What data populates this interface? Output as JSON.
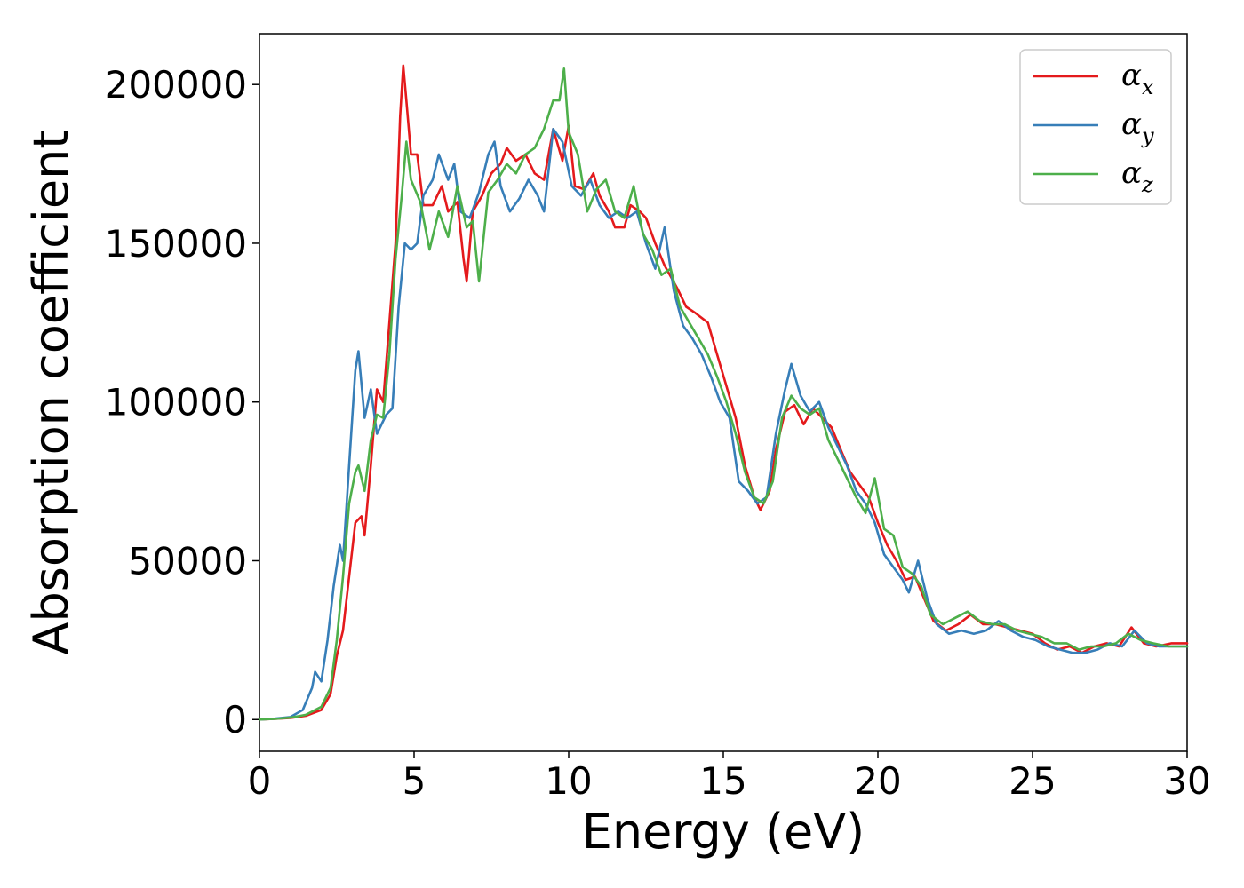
{
  "chart_data": {
    "type": "line",
    "title": "",
    "xlabel": "Energy (eV)",
    "ylabel": "Absorption coefficient",
    "xlim": [
      0,
      30
    ],
    "ylim": [
      -10000,
      216000
    ],
    "xticks": [
      0,
      5,
      10,
      15,
      20,
      25,
      30
    ],
    "yticks": [
      0,
      50000,
      100000,
      150000,
      200000
    ],
    "grid": false,
    "legend_position": "top-right",
    "series": [
      {
        "name": "α_x",
        "label_base": "α",
        "label_sub": "x",
        "color": "#e41a1c",
        "points": [
          [
            0,
            0
          ],
          [
            0.5,
            200
          ],
          [
            1.0,
            500
          ],
          [
            1.5,
            1200
          ],
          [
            2.0,
            3000
          ],
          [
            2.3,
            8000
          ],
          [
            2.5,
            20000
          ],
          [
            2.7,
            28000
          ],
          [
            2.9,
            45000
          ],
          [
            3.1,
            62000
          ],
          [
            3.3,
            64000
          ],
          [
            3.4,
            58000
          ],
          [
            3.6,
            80000
          ],
          [
            3.8,
            104000
          ],
          [
            4.0,
            100000
          ],
          [
            4.2,
            125000
          ],
          [
            4.4,
            150000
          ],
          [
            4.55,
            190000
          ],
          [
            4.65,
            206000
          ],
          [
            4.75,
            195000
          ],
          [
            4.9,
            178000
          ],
          [
            5.1,
            178000
          ],
          [
            5.3,
            162000
          ],
          [
            5.6,
            162000
          ],
          [
            5.9,
            168000
          ],
          [
            6.1,
            160000
          ],
          [
            6.4,
            163000
          ],
          [
            6.6,
            145000
          ],
          [
            6.7,
            138000
          ],
          [
            6.9,
            160000
          ],
          [
            7.2,
            165000
          ],
          [
            7.5,
            172000
          ],
          [
            7.8,
            175000
          ],
          [
            8.0,
            180000
          ],
          [
            8.3,
            176000
          ],
          [
            8.6,
            178000
          ],
          [
            8.9,
            172000
          ],
          [
            9.2,
            170000
          ],
          [
            9.5,
            186000
          ],
          [
            9.8,
            176000
          ],
          [
            10.0,
            187000
          ],
          [
            10.2,
            168000
          ],
          [
            10.5,
            167000
          ],
          [
            10.8,
            172000
          ],
          [
            11.0,
            165000
          ],
          [
            11.3,
            160000
          ],
          [
            11.5,
            155000
          ],
          [
            11.8,
            155000
          ],
          [
            12.0,
            162000
          ],
          [
            12.3,
            160000
          ],
          [
            12.5,
            158000
          ],
          [
            12.8,
            150000
          ],
          [
            13.1,
            143000
          ],
          [
            13.5,
            136000
          ],
          [
            13.8,
            130000
          ],
          [
            14.1,
            128000
          ],
          [
            14.5,
            125000
          ],
          [
            14.8,
            115000
          ],
          [
            15.1,
            105000
          ],
          [
            15.4,
            95000
          ],
          [
            15.7,
            80000
          ],
          [
            16.0,
            70000
          ],
          [
            16.2,
            66000
          ],
          [
            16.5,
            72000
          ],
          [
            16.7,
            85000
          ],
          [
            17.0,
            97000
          ],
          [
            17.3,
            99000
          ],
          [
            17.6,
            93000
          ],
          [
            17.9,
            98000
          ],
          [
            18.2,
            95000
          ],
          [
            18.5,
            92000
          ],
          [
            18.8,
            85000
          ],
          [
            19.1,
            78000
          ],
          [
            19.4,
            74000
          ],
          [
            19.7,
            70000
          ],
          [
            20.0,
            62000
          ],
          [
            20.3,
            55000
          ],
          [
            20.6,
            50000
          ],
          [
            20.9,
            44000
          ],
          [
            21.2,
            45000
          ],
          [
            21.5,
            38000
          ],
          [
            21.8,
            31000
          ],
          [
            22.2,
            28000
          ],
          [
            22.6,
            30000
          ],
          [
            23.0,
            33000
          ],
          [
            23.4,
            30000
          ],
          [
            23.8,
            30000
          ],
          [
            24.2,
            29000
          ],
          [
            24.6,
            28000
          ],
          [
            25.0,
            27000
          ],
          [
            25.4,
            24000
          ],
          [
            25.8,
            22000
          ],
          [
            26.2,
            23000
          ],
          [
            26.6,
            21000
          ],
          [
            27.0,
            23000
          ],
          [
            27.4,
            24000
          ],
          [
            27.8,
            23000
          ],
          [
            28.2,
            29000
          ],
          [
            28.6,
            24000
          ],
          [
            29.0,
            23000
          ],
          [
            29.5,
            24000
          ],
          [
            30.0,
            24000
          ]
        ]
      },
      {
        "name": "α_y",
        "label_base": "α",
        "label_sub": "y",
        "color": "#377eb8",
        "points": [
          [
            0,
            0
          ],
          [
            0.5,
            300
          ],
          [
            1.0,
            800
          ],
          [
            1.4,
            3000
          ],
          [
            1.7,
            10000
          ],
          [
            1.8,
            15000
          ],
          [
            2.0,
            12000
          ],
          [
            2.2,
            25000
          ],
          [
            2.4,
            42000
          ],
          [
            2.6,
            55000
          ],
          [
            2.7,
            50000
          ],
          [
            2.9,
            80000
          ],
          [
            3.1,
            110000
          ],
          [
            3.2,
            116000
          ],
          [
            3.4,
            95000
          ],
          [
            3.6,
            104000
          ],
          [
            3.8,
            90000
          ],
          [
            4.1,
            96000
          ],
          [
            4.3,
            98000
          ],
          [
            4.5,
            130000
          ],
          [
            4.7,
            150000
          ],
          [
            4.9,
            148000
          ],
          [
            5.1,
            150000
          ],
          [
            5.3,
            165000
          ],
          [
            5.6,
            170000
          ],
          [
            5.8,
            178000
          ],
          [
            6.1,
            170000
          ],
          [
            6.3,
            175000
          ],
          [
            6.5,
            160000
          ],
          [
            6.8,
            158000
          ],
          [
            7.1,
            166000
          ],
          [
            7.4,
            178000
          ],
          [
            7.6,
            182000
          ],
          [
            7.8,
            168000
          ],
          [
            8.1,
            160000
          ],
          [
            8.4,
            164000
          ],
          [
            8.7,
            170000
          ],
          [
            9.0,
            165000
          ],
          [
            9.2,
            160000
          ],
          [
            9.5,
            186000
          ],
          [
            9.8,
            182000
          ],
          [
            10.1,
            168000
          ],
          [
            10.4,
            165000
          ],
          [
            10.7,
            170000
          ],
          [
            11.0,
            162000
          ],
          [
            11.3,
            158000
          ],
          [
            11.6,
            160000
          ],
          [
            11.9,
            158000
          ],
          [
            12.2,
            160000
          ],
          [
            12.5,
            150000
          ],
          [
            12.8,
            142000
          ],
          [
            13.1,
            155000
          ],
          [
            13.4,
            135000
          ],
          [
            13.7,
            124000
          ],
          [
            14.0,
            120000
          ],
          [
            14.3,
            115000
          ],
          [
            14.6,
            108000
          ],
          [
            14.9,
            100000
          ],
          [
            15.2,
            95000
          ],
          [
            15.5,
            75000
          ],
          [
            15.8,
            72000
          ],
          [
            16.1,
            68000
          ],
          [
            16.4,
            70000
          ],
          [
            16.7,
            90000
          ],
          [
            17.0,
            104000
          ],
          [
            17.2,
            112000
          ],
          [
            17.5,
            102000
          ],
          [
            17.8,
            97000
          ],
          [
            18.1,
            100000
          ],
          [
            18.4,
            92000
          ],
          [
            18.7,
            86000
          ],
          [
            19.0,
            80000
          ],
          [
            19.3,
            72000
          ],
          [
            19.6,
            68000
          ],
          [
            19.9,
            62000
          ],
          [
            20.2,
            52000
          ],
          [
            20.5,
            48000
          ],
          [
            20.8,
            44000
          ],
          [
            21.0,
            40000
          ],
          [
            21.3,
            50000
          ],
          [
            21.6,
            38000
          ],
          [
            21.9,
            30000
          ],
          [
            22.3,
            27000
          ],
          [
            22.7,
            28000
          ],
          [
            23.1,
            27000
          ],
          [
            23.5,
            28000
          ],
          [
            23.9,
            31000
          ],
          [
            24.3,
            28000
          ],
          [
            24.7,
            26000
          ],
          [
            25.1,
            25000
          ],
          [
            25.5,
            23000
          ],
          [
            25.9,
            22000
          ],
          [
            26.3,
            21000
          ],
          [
            26.7,
            21000
          ],
          [
            27.1,
            22000
          ],
          [
            27.5,
            24000
          ],
          [
            27.9,
            23000
          ],
          [
            28.3,
            28000
          ],
          [
            28.7,
            24000
          ],
          [
            29.1,
            23000
          ],
          [
            29.6,
            23000
          ],
          [
            30.0,
            23000
          ]
        ]
      },
      {
        "name": "α_z",
        "label_base": "α",
        "label_sub": "z",
        "color": "#4daf4a",
        "points": [
          [
            0,
            0
          ],
          [
            0.5,
            200
          ],
          [
            1.0,
            600
          ],
          [
            1.5,
            1500
          ],
          [
            2.0,
            4000
          ],
          [
            2.3,
            10000
          ],
          [
            2.5,
            25000
          ],
          [
            2.7,
            45000
          ],
          [
            2.9,
            68000
          ],
          [
            3.1,
            78000
          ],
          [
            3.2,
            80000
          ],
          [
            3.4,
            72000
          ],
          [
            3.6,
            88000
          ],
          [
            3.8,
            96000
          ],
          [
            4.0,
            95000
          ],
          [
            4.2,
            115000
          ],
          [
            4.4,
            145000
          ],
          [
            4.6,
            165000
          ],
          [
            4.75,
            182000
          ],
          [
            4.9,
            170000
          ],
          [
            5.2,
            163000
          ],
          [
            5.5,
            148000
          ],
          [
            5.8,
            160000
          ],
          [
            6.1,
            152000
          ],
          [
            6.4,
            168000
          ],
          [
            6.7,
            155000
          ],
          [
            6.9,
            157000
          ],
          [
            7.1,
            138000
          ],
          [
            7.4,
            166000
          ],
          [
            7.7,
            170000
          ],
          [
            8.0,
            175000
          ],
          [
            8.3,
            172000
          ],
          [
            8.6,
            178000
          ],
          [
            8.9,
            180000
          ],
          [
            9.2,
            186000
          ],
          [
            9.5,
            195000
          ],
          [
            9.7,
            195000
          ],
          [
            9.85,
            205000
          ],
          [
            10.0,
            185000
          ],
          [
            10.3,
            178000
          ],
          [
            10.6,
            160000
          ],
          [
            10.9,
            167000
          ],
          [
            11.2,
            170000
          ],
          [
            11.5,
            160000
          ],
          [
            11.8,
            158000
          ],
          [
            12.1,
            168000
          ],
          [
            12.4,
            153000
          ],
          [
            12.7,
            148000
          ],
          [
            13.0,
            140000
          ],
          [
            13.3,
            142000
          ],
          [
            13.6,
            130000
          ],
          [
            13.9,
            125000
          ],
          [
            14.2,
            120000
          ],
          [
            14.5,
            115000
          ],
          [
            14.8,
            108000
          ],
          [
            15.1,
            100000
          ],
          [
            15.4,
            90000
          ],
          [
            15.7,
            78000
          ],
          [
            16.0,
            70000
          ],
          [
            16.3,
            68000
          ],
          [
            16.6,
            75000
          ],
          [
            16.9,
            95000
          ],
          [
            17.2,
            102000
          ],
          [
            17.5,
            98000
          ],
          [
            17.8,
            96000
          ],
          [
            18.1,
            98000
          ],
          [
            18.4,
            88000
          ],
          [
            18.7,
            82000
          ],
          [
            19.0,
            76000
          ],
          [
            19.3,
            70000
          ],
          [
            19.6,
            65000
          ],
          [
            19.9,
            76000
          ],
          [
            20.2,
            60000
          ],
          [
            20.5,
            58000
          ],
          [
            20.8,
            48000
          ],
          [
            21.1,
            46000
          ],
          [
            21.4,
            42000
          ],
          [
            21.7,
            33000
          ],
          [
            22.1,
            30000
          ],
          [
            22.5,
            32000
          ],
          [
            22.9,
            34000
          ],
          [
            23.3,
            31000
          ],
          [
            23.7,
            30000
          ],
          [
            24.1,
            30000
          ],
          [
            24.5,
            28000
          ],
          [
            24.9,
            27000
          ],
          [
            25.3,
            26000
          ],
          [
            25.7,
            24000
          ],
          [
            26.1,
            24000
          ],
          [
            26.5,
            22000
          ],
          [
            26.9,
            23000
          ],
          [
            27.3,
            23000
          ],
          [
            27.7,
            24000
          ],
          [
            28.1,
            27000
          ],
          [
            28.5,
            25000
          ],
          [
            28.9,
            24000
          ],
          [
            29.4,
            23000
          ],
          [
            30.0,
            23000
          ]
        ]
      }
    ]
  }
}
